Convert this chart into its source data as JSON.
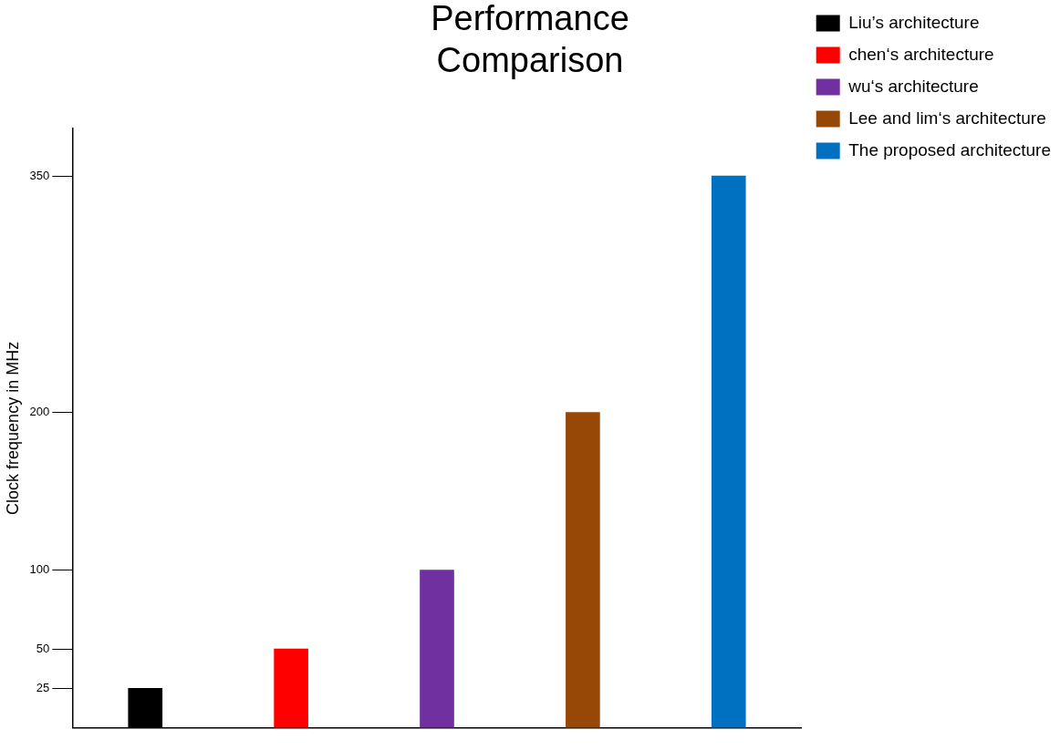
{
  "chart_data": {
    "type": "bar",
    "title": [
      "Performance",
      "Comparison"
    ],
    "ylabel": "Clock frequency in MHz",
    "categories": [
      null,
      null,
      null,
      null,
      null
    ],
    "series": [
      {
        "name": "Liu’s architecture",
        "color": "#000000",
        "values": [
          25,
          null,
          null,
          null,
          null
        ]
      },
      {
        "name": "chen‘s architecture",
        "color": "#ff0000",
        "values": [
          null,
          50,
          null,
          null,
          null
        ]
      },
      {
        "name": "wu‘s architecture",
        "color": "#7030a0",
        "values": [
          null,
          null,
          100,
          null,
          null
        ]
      },
      {
        "name": "Lee and lim‘s architecture",
        "color": "#974706",
        "values": [
          null,
          null,
          null,
          200,
          null
        ]
      },
      {
        "name": "The proposed architecture",
        "color": "#0070c0",
        "values": [
          null,
          null,
          null,
          null,
          350
        ]
      }
    ],
    "ylim": [
      0,
      380
    ],
    "yticks": [
      25,
      50,
      100,
      200,
      350
    ],
    "grid": false,
    "legend": "top right"
  }
}
